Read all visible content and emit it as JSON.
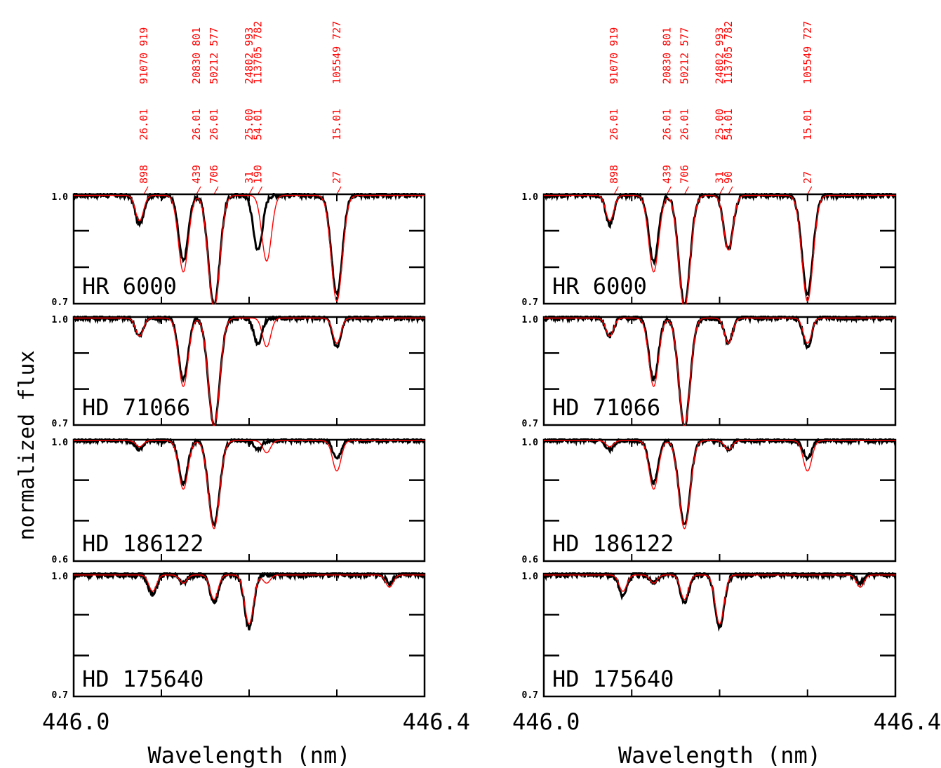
{
  "y_axis_label": "normalized flux",
  "x_axis_label": "Wavelength (nm)",
  "x_ticks": [
    "446.0",
    "446.4"
  ],
  "colors": {
    "observed": "#000000",
    "synthetic": "#ff0000"
  },
  "chart_data": [
    {
      "type": "line",
      "xlim": [
        446.0,
        446.4
      ],
      "line_ids": [
        {
          "wavelength": 446.08,
          "lines": [
            "898",
            "26.01",
            "91070 919"
          ]
        },
        {
          "wavelength": 446.14,
          "lines": [
            "439",
            "26.01",
            "20830 801"
          ]
        },
        {
          "wavelength": 446.16,
          "lines": [
            "706",
            "26.01",
            "50212 577"
          ]
        },
        {
          "wavelength": 446.2,
          "lines": [
            "31",
            "25.00",
            "24802 993"
          ]
        },
        {
          "wavelength": 446.21,
          "lines": [
            "190",
            "54.01",
            "113705 782"
          ]
        },
        {
          "wavelength": 446.3,
          "lines": [
            "27",
            "15.01",
            "105549 727"
          ]
        }
      ],
      "panels": [
        {
          "star": "HR 6000",
          "ylim": [
            0.7,
            1.0
          ],
          "yticks": [
            "1.0",
            "0.7"
          ],
          "series": [
            {
              "name": "observed",
              "lines": [
                [
                  446.075,
                  0.92
                ],
                [
                  446.125,
                  0.82
                ],
                [
                  446.16,
                  0.7
                ],
                [
                  446.21,
                  0.85
                ],
                [
                  446.3,
                  0.73
                ]
              ]
            },
            {
              "name": "synthetic",
              "lines": [
                [
                  446.075,
                  0.93
                ],
                [
                  446.125,
                  0.79
                ],
                [
                  446.16,
                  0.69
                ],
                [
                  446.22,
                  0.82
                ],
                [
                  446.3,
                  0.71
                ]
              ]
            }
          ]
        },
        {
          "star": "HD 71066",
          "ylim": [
            0.7,
            1.0
          ],
          "yticks": [
            "1.0",
            "0.7"
          ],
          "series": [
            {
              "name": "observed",
              "lines": [
                [
                  446.075,
                  0.95
                ],
                [
                  446.125,
                  0.83
                ],
                [
                  446.16,
                  0.7
                ],
                [
                  446.21,
                  0.93
                ],
                [
                  446.3,
                  0.92
                ]
              ]
            },
            {
              "name": "synthetic",
              "lines": [
                [
                  446.075,
                  0.95
                ],
                [
                  446.125,
                  0.81
                ],
                [
                  446.16,
                  0.7
                ],
                [
                  446.22,
                  0.92
                ],
                [
                  446.3,
                  0.93
                ]
              ]
            }
          ]
        },
        {
          "star": "HD 186122",
          "ylim": [
            0.6,
            1.0
          ],
          "yticks": [
            "1.0",
            "0.6"
          ],
          "series": [
            {
              "name": "observed",
              "lines": [
                [
                  446.075,
                  0.97
                ],
                [
                  446.125,
                  0.86
                ],
                [
                  446.16,
                  0.72
                ],
                [
                  446.21,
                  0.97
                ],
                [
                  446.3,
                  0.94
                ]
              ]
            },
            {
              "name": "synthetic",
              "lines": [
                [
                  446.075,
                  0.98
                ],
                [
                  446.125,
                  0.84
                ],
                [
                  446.16,
                  0.71
                ],
                [
                  446.22,
                  0.96
                ],
                [
                  446.3,
                  0.9
                ]
              ]
            }
          ]
        },
        {
          "star": "HD 175640",
          "ylim": [
            0.7,
            1.0
          ],
          "yticks": [
            "1.0",
            "0.7"
          ],
          "series": [
            {
              "name": "observed",
              "lines": [
                [
                  446.09,
                  0.95
                ],
                [
                  446.125,
                  0.98
                ],
                [
                  446.16,
                  0.93
                ],
                [
                  446.2,
                  0.87
                ],
                [
                  446.36,
                  0.98
                ]
              ]
            },
            {
              "name": "synthetic",
              "lines": [
                [
                  446.09,
                  0.96
                ],
                [
                  446.125,
                  0.98
                ],
                [
                  446.16,
                  0.94
                ],
                [
                  446.2,
                  0.88
                ],
                [
                  446.22,
                  0.98
                ],
                [
                  446.36,
                  0.97
                ]
              ]
            }
          ]
        }
      ]
    },
    {
      "type": "line",
      "xlim": [
        446.0,
        446.4
      ],
      "line_ids": [
        {
          "wavelength": 446.08,
          "lines": [
            "898",
            "26.01",
            "91070 919"
          ]
        },
        {
          "wavelength": 446.14,
          "lines": [
            "439",
            "26.01",
            "20830 801"
          ]
        },
        {
          "wavelength": 446.16,
          "lines": [
            "706",
            "26.01",
            "50212 577"
          ]
        },
        {
          "wavelength": 446.2,
          "lines": [
            "31",
            "25.00",
            "24802 993"
          ]
        },
        {
          "wavelength": 446.21,
          "lines": [
            "90",
            "54.01",
            "113705 782"
          ]
        },
        {
          "wavelength": 446.3,
          "lines": [
            "27",
            "15.01",
            "105549 727"
          ]
        }
      ],
      "panels": [
        {
          "star": "HR 6000",
          "ylim": [
            0.7,
            1.0
          ],
          "yticks": [
            "1.0",
            "0.7"
          ],
          "series": [
            {
              "name": "observed",
              "lines": [
                [
                  446.075,
                  0.92
                ],
                [
                  446.125,
                  0.82
                ],
                [
                  446.16,
                  0.7
                ],
                [
                  446.21,
                  0.85
                ],
                [
                  446.3,
                  0.73
                ]
              ]
            },
            {
              "name": "synthetic",
              "lines": [
                [
                  446.075,
                  0.93
                ],
                [
                  446.125,
                  0.79
                ],
                [
                  446.16,
                  0.69
                ],
                [
                  446.21,
                  0.85
                ],
                [
                  446.3,
                  0.71
                ]
              ]
            }
          ]
        },
        {
          "star": "HD 71066",
          "ylim": [
            0.7,
            1.0
          ],
          "yticks": [
            "1.0",
            "0.7"
          ],
          "series": [
            {
              "name": "observed",
              "lines": [
                [
                  446.075,
                  0.95
                ],
                [
                  446.125,
                  0.83
                ],
                [
                  446.16,
                  0.7
                ],
                [
                  446.21,
                  0.93
                ],
                [
                  446.3,
                  0.92
                ]
              ]
            },
            {
              "name": "synthetic",
              "lines": [
                [
                  446.075,
                  0.95
                ],
                [
                  446.125,
                  0.81
                ],
                [
                  446.16,
                  0.7
                ],
                [
                  446.21,
                  0.93
                ],
                [
                  446.3,
                  0.93
                ]
              ]
            }
          ]
        },
        {
          "star": "HD 186122",
          "ylim": [
            0.6,
            1.0
          ],
          "yticks": [
            "1.0",
            "0.6"
          ],
          "series": [
            {
              "name": "observed",
              "lines": [
                [
                  446.075,
                  0.97
                ],
                [
                  446.125,
                  0.86
                ],
                [
                  446.16,
                  0.72
                ],
                [
                  446.21,
                  0.97
                ],
                [
                  446.3,
                  0.94
                ]
              ]
            },
            {
              "name": "synthetic",
              "lines": [
                [
                  446.075,
                  0.98
                ],
                [
                  446.125,
                  0.84
                ],
                [
                  446.16,
                  0.71
                ],
                [
                  446.21,
                  0.97
                ],
                [
                  446.3,
                  0.9
                ]
              ]
            }
          ]
        },
        {
          "star": "HD 175640",
          "ylim": [
            0.7,
            1.0
          ],
          "yticks": [
            "1.0",
            "0.7"
          ],
          "series": [
            {
              "name": "observed",
              "lines": [
                [
                  446.09,
                  0.95
                ],
                [
                  446.125,
                  0.98
                ],
                [
                  446.16,
                  0.93
                ],
                [
                  446.2,
                  0.87
                ],
                [
                  446.36,
                  0.98
                ]
              ]
            },
            {
              "name": "synthetic",
              "lines": [
                [
                  446.09,
                  0.96
                ],
                [
                  446.125,
                  0.98
                ],
                [
                  446.16,
                  0.94
                ],
                [
                  446.2,
                  0.88
                ],
                [
                  446.36,
                  0.97
                ]
              ]
            }
          ]
        }
      ]
    }
  ]
}
